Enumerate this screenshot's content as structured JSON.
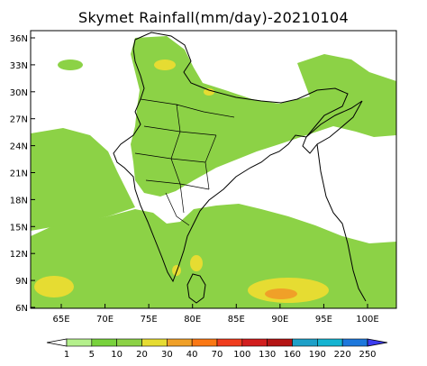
{
  "title": "Skymet Rainfall(mm/day)-20210104",
  "lat_labels": [
    "36N",
    "33N",
    "30N",
    "27N",
    "24N",
    "21N",
    "18N",
    "15N",
    "12N",
    "9N",
    "6N"
  ],
  "lon_labels": [
    "65E",
    "70E",
    "75E",
    "80E",
    "85E",
    "90E",
    "95E",
    "100E"
  ],
  "colorbar": {
    "labels": [
      "1",
      "5",
      "10",
      "20",
      "30",
      "40",
      "70",
      "100",
      "130",
      "160",
      "190",
      "220",
      "250"
    ],
    "colors": [
      "#b4f08c",
      "#78d23c",
      "#8cd246",
      "#e6dc32",
      "#f0a028",
      "#fa7814",
      "#f03c1e",
      "#d21e1e",
      "#b41414",
      "#1ea0c8",
      "#14b4d2",
      "#1e78dc",
      "#3c3cf0"
    ]
  },
  "map_extent": {
    "lon": [
      60,
      105
    ],
    "lat": [
      5,
      37
    ]
  }
}
